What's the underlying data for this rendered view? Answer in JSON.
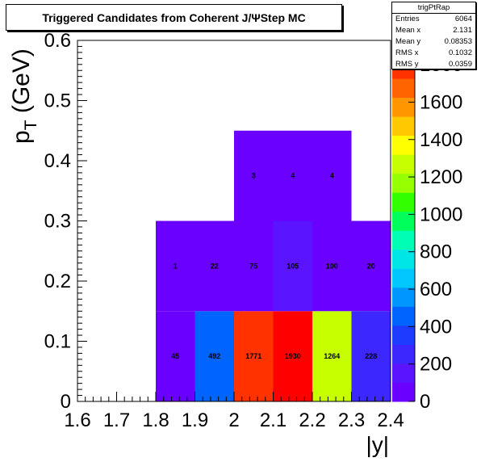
{
  "chart_data": {
    "type": "heatmap",
    "title": "Triggered Candidates from Coherent J/ΨStep MC",
    "xlabel": "|y|",
    "ylabel_main": "p",
    "ylabel_sub": "T",
    "ylabel_unit": "(GeV)",
    "xlim": [
      1.6,
      2.4
    ],
    "ylim": [
      0,
      0.6
    ],
    "x_ticks": [
      "1.6",
      "1.7",
      "1.8",
      "1.9",
      "2",
      "2.1",
      "2.2",
      "2.3",
      "2.4"
    ],
    "y_ticks": [
      "0",
      "0.1",
      "0.2",
      "0.3",
      "0.4",
      "0.5",
      "0.6"
    ],
    "z_range": [
      0,
      1930
    ],
    "palette_ticks": [
      "0",
      "200",
      "400",
      "600",
      "800",
      "1000",
      "1200",
      "1400",
      "1600",
      "1800"
    ],
    "cells": [
      {
        "x0": 1.8,
        "x1": 1.9,
        "y0": 0.0,
        "y1": 0.15,
        "value": 45,
        "label": "45"
      },
      {
        "x0": 1.9,
        "x1": 2.0,
        "y0": 0.0,
        "y1": 0.15,
        "value": 492,
        "label": "492"
      },
      {
        "x0": 2.0,
        "x1": 2.1,
        "y0": 0.0,
        "y1": 0.15,
        "value": 1771,
        "label": "1771"
      },
      {
        "x0": 2.1,
        "x1": 2.2,
        "y0": 0.0,
        "y1": 0.15,
        "value": 1930,
        "label": "1930"
      },
      {
        "x0": 2.2,
        "x1": 2.3,
        "y0": 0.0,
        "y1": 0.15,
        "value": 1264,
        "label": "1264"
      },
      {
        "x0": 2.3,
        "x1": 2.4,
        "y0": 0.0,
        "y1": 0.15,
        "value": 228,
        "label": "228"
      },
      {
        "x0": 1.8,
        "x1": 1.9,
        "y0": 0.15,
        "y1": 0.3,
        "value": 1,
        "label": "1"
      },
      {
        "x0": 1.9,
        "x1": 2.0,
        "y0": 0.15,
        "y1": 0.3,
        "value": 22,
        "label": "22"
      },
      {
        "x0": 2.0,
        "x1": 2.1,
        "y0": 0.15,
        "y1": 0.3,
        "value": 75,
        "label": "75"
      },
      {
        "x0": 2.1,
        "x1": 2.2,
        "y0": 0.15,
        "y1": 0.3,
        "value": 105,
        "label": "105"
      },
      {
        "x0": 2.2,
        "x1": 2.3,
        "y0": 0.15,
        "y1": 0.3,
        "value": 100,
        "label": "100"
      },
      {
        "x0": 2.3,
        "x1": 2.4,
        "y0": 0.15,
        "y1": 0.3,
        "value": 20,
        "label": "20"
      },
      {
        "x0": 2.0,
        "x1": 2.1,
        "y0": 0.3,
        "y1": 0.45,
        "value": 3,
        "label": "3"
      },
      {
        "x0": 2.1,
        "x1": 2.2,
        "y0": 0.3,
        "y1": 0.45,
        "value": 4,
        "label": "4"
      },
      {
        "x0": 2.2,
        "x1": 2.3,
        "y0": 0.3,
        "y1": 0.45,
        "value": 4,
        "label": "4"
      }
    ]
  },
  "stats": {
    "name": "trigPtRap",
    "rows": [
      {
        "label": "Entries",
        "value": "6064"
      },
      {
        "label": "Mean x",
        "value": "2.131"
      },
      {
        "label": "Mean y",
        "value": "0.08353"
      },
      {
        "label": "RMS x",
        "value": "0.1032"
      },
      {
        "label": "RMS y",
        "value": "0.0359"
      }
    ]
  },
  "palette": [
    "#6a00ff",
    "#5a14ff",
    "#3c28ff",
    "#1e3cff",
    "#0064ff",
    "#0096ff",
    "#00c8ff",
    "#00e6e6",
    "#00ffb4",
    "#00ff5a",
    "#32ff00",
    "#96ff00",
    "#c8ff00",
    "#ffff00",
    "#ffc800",
    "#ff9600",
    "#ff6400",
    "#ff3200",
    "#ff0000"
  ]
}
